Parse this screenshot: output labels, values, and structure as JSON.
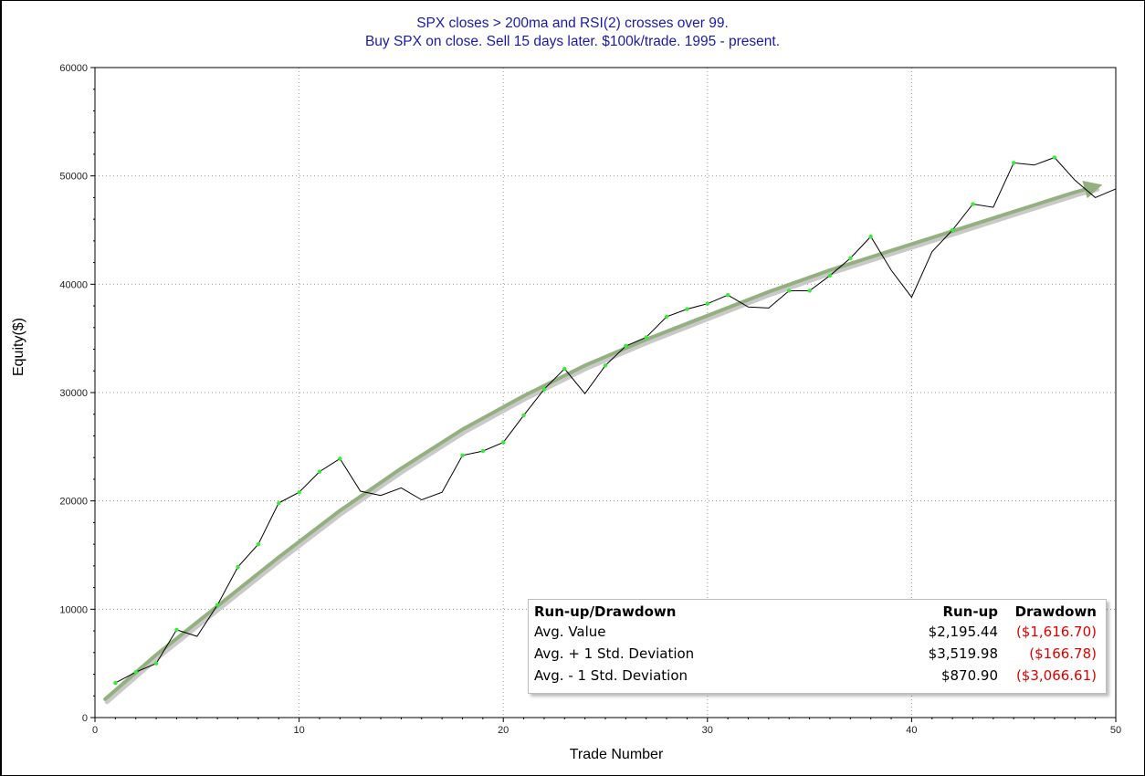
{
  "chart_data": {
    "type": "line",
    "title": "SPX closes > 200ma and RSI(2) crosses over 99.",
    "subtitle": "Buy SPX on close. Sell 15 days later. $100k/trade. 1995 - present.",
    "xlabel": "Trade Number",
    "ylabel": "Equity($)",
    "xlim": [
      0,
      50
    ],
    "ylim": [
      0,
      60000
    ],
    "x_ticks": [
      "0",
      "10",
      "20",
      "30",
      "40",
      "50"
    ],
    "y_ticks": [
      "0",
      "10000",
      "20000",
      "30000",
      "40000",
      "50000",
      "60000"
    ],
    "grid": true,
    "grid_x": [
      10,
      20,
      30,
      40
    ],
    "grid_y": [
      10000,
      20000,
      30000,
      40000,
      50000
    ],
    "series": [
      {
        "color": "#000000",
        "marker_color": "#33ee33",
        "x": [
          1,
          2,
          3,
          4,
          5,
          6,
          7,
          8,
          9,
          10,
          11,
          12,
          13,
          14,
          15,
          16,
          17,
          18,
          19,
          20,
          21,
          22,
          23,
          24,
          25,
          26,
          27,
          28,
          29,
          30,
          31,
          32,
          33,
          34,
          35,
          36,
          37,
          38,
          39,
          40,
          41,
          42,
          43,
          44,
          45,
          46,
          47,
          48,
          49,
          50
        ],
        "y": [
          3200,
          4200,
          5000,
          8100,
          7500,
          10400,
          13900,
          16000,
          19800,
          20800,
          22700,
          23900,
          20900,
          20500,
          21200,
          20100,
          20800,
          24200,
          24600,
          25400,
          27900,
          30300,
          32200,
          29900,
          32500,
          34300,
          35100,
          37000,
          37700,
          38200,
          39000,
          37900,
          37800,
          39400,
          39400,
          40800,
          42400,
          44400,
          41300,
          38800,
          43000,
          45000,
          47400,
          47100,
          51200,
          51000,
          51700,
          49600,
          48000,
          48800
        ],
        "markers": [
          true,
          true,
          true,
          true,
          false,
          true,
          true,
          true,
          true,
          true,
          true,
          true,
          false,
          false,
          false,
          false,
          false,
          true,
          true,
          true,
          true,
          true,
          true,
          false,
          true,
          true,
          true,
          true,
          true,
          true,
          true,
          false,
          false,
          true,
          true,
          true,
          true,
          true,
          false,
          false,
          false,
          true,
          true,
          false,
          true,
          false,
          true,
          false,
          false,
          false
        ]
      }
    ],
    "trend": {
      "color": "#93b07f",
      "x": [
        0.5,
        3,
        6,
        9,
        12,
        15,
        18,
        21,
        24,
        27,
        30,
        33,
        36,
        39,
        42,
        45,
        48,
        49
      ],
      "y": [
        1700,
        5800,
        10300,
        14800,
        19100,
        23000,
        26600,
        29700,
        32500,
        34900,
        37100,
        39300,
        41300,
        43100,
        44900,
        46700,
        48500,
        49000
      ]
    }
  },
  "legend_box": {
    "title": "Run-up/Drawdown",
    "col1": "Run-up",
    "col2": "Drawdown",
    "rows": [
      {
        "label": "Avg. Value",
        "runup": "$2,195.44",
        "drawdown": "($1,616.70)"
      },
      {
        "label": "Avg. + 1 Std. Deviation",
        "runup": "$3,519.98",
        "drawdown": "($166.78)"
      },
      {
        "label": "Avg. - 1 Std. Deviation",
        "runup": "$870.90",
        "drawdown": "($3,066.61)"
      }
    ]
  },
  "colors": {
    "title": "#1a1aa8",
    "drawdown": "#e00000",
    "line": "#000000",
    "marker": "#33ee33",
    "trend": "#93b07f"
  }
}
